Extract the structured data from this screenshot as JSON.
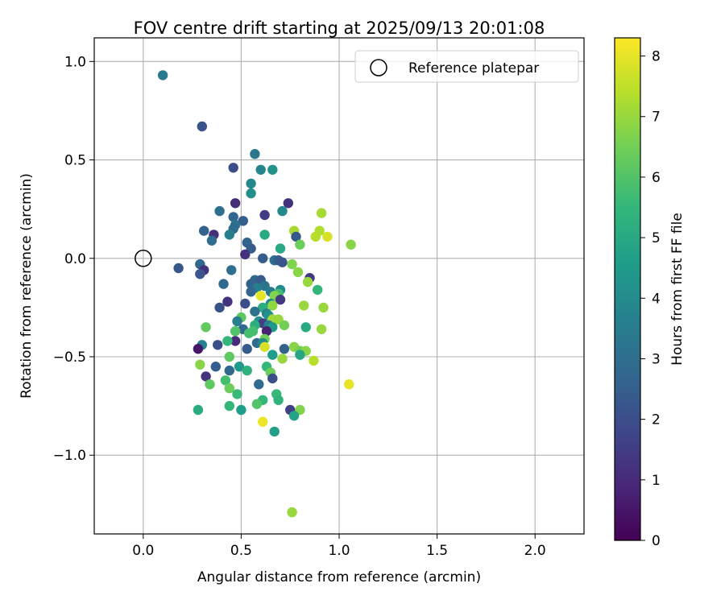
{
  "chart_data": {
    "type": "scatter",
    "title": "FOV centre drift starting at 2025/09/13 20:01:08",
    "xlabel": "Angular distance from reference (arcmin)",
    "ylabel": "Rotation from reference (arcmin)",
    "xlim": [
      -0.25,
      2.25
    ],
    "ylim": [
      -1.4,
      1.12
    ],
    "xticks": [
      0.0,
      0.5,
      1.0,
      1.5,
      2.0
    ],
    "xtick_labels": [
      "0.0",
      "0.5",
      "1.0",
      "1.5",
      "2.0"
    ],
    "yticks": [
      1.0,
      0.5,
      0.0,
      -0.5,
      -1.0
    ],
    "ytick_labels": [
      "1.0",
      "0.5",
      "0.0",
      "−0.5",
      "−1.0"
    ],
    "grid": true,
    "legend": {
      "location": "top-right",
      "entries": [
        "Reference platepar"
      ]
    },
    "reference_point": {
      "x": 0.0,
      "y": 0.0,
      "label": "Reference platepar"
    },
    "colorbar": {
      "label": "Hours from first FF file",
      "min": 0,
      "max": 8.3,
      "ticks": [
        0,
        1,
        2,
        3,
        4,
        5,
        6,
        7,
        8
      ],
      "tick_labels": [
        "0",
        "1",
        "2",
        "3",
        "4",
        "5",
        "6",
        "7",
        "8"
      ],
      "colormap": [
        "#440154",
        "#482878",
        "#3e4989",
        "#31688e",
        "#26828e",
        "#1f9e89",
        "#35b779",
        "#6ece58",
        "#b5de2b",
        "#fde725"
      ]
    },
    "points": [
      [
        0.1,
        0.93,
        3.4
      ],
      [
        0.3,
        0.67,
        2.1
      ],
      [
        0.57,
        0.53,
        3.3
      ],
      [
        0.46,
        0.46,
        2.0
      ],
      [
        0.6,
        0.45,
        3.8
      ],
      [
        0.66,
        0.45,
        4.2
      ],
      [
        0.55,
        0.38,
        3.9
      ],
      [
        0.55,
        0.33,
        4.1
      ],
      [
        0.47,
        0.28,
        1.0
      ],
      [
        0.74,
        0.28,
        1.2
      ],
      [
        0.39,
        0.24,
        3.0
      ],
      [
        0.71,
        0.24,
        3.9
      ],
      [
        0.91,
        0.23,
        7.2
      ],
      [
        0.46,
        0.21,
        2.7
      ],
      [
        0.62,
        0.22,
        1.5
      ],
      [
        0.51,
        0.19,
        2.5
      ],
      [
        0.47,
        0.17,
        3.1
      ],
      [
        0.46,
        0.15,
        2.9
      ],
      [
        0.31,
        0.14,
        2.6
      ],
      [
        0.77,
        0.14,
        7.2
      ],
      [
        0.9,
        0.14,
        7.3
      ],
      [
        0.36,
        0.12,
        1.1
      ],
      [
        0.44,
        0.12,
        3.6
      ],
      [
        0.62,
        0.12,
        5.0
      ],
      [
        0.78,
        0.11,
        2.3
      ],
      [
        0.88,
        0.11,
        7.4
      ],
      [
        0.94,
        0.11,
        7.8
      ],
      [
        0.35,
        0.09,
        2.9
      ],
      [
        0.53,
        0.08,
        2.6
      ],
      [
        0.8,
        0.07,
        6.4
      ],
      [
        0.55,
        0.05,
        2.4
      ],
      [
        0.7,
        0.05,
        5.0
      ],
      [
        1.06,
        0.07,
        6.8
      ],
      [
        0.52,
        0.02,
        1.2
      ],
      [
        0.61,
        0.0,
        2.4
      ],
      [
        0.67,
        -0.01,
        3.0
      ],
      [
        0.69,
        -0.01,
        2.4
      ],
      [
        0.71,
        -0.02,
        2.2
      ],
      [
        0.76,
        -0.03,
        6.7
      ],
      [
        0.29,
        -0.03,
        2.8
      ],
      [
        0.18,
        -0.05,
        2.3
      ],
      [
        0.31,
        -0.06,
        1.2
      ],
      [
        0.45,
        -0.06,
        3.0
      ],
      [
        0.79,
        -0.07,
        6.8
      ],
      [
        0.29,
        -0.08,
        2.2
      ],
      [
        0.85,
        -0.1,
        1.4
      ],
      [
        0.57,
        -0.11,
        2.8
      ],
      [
        0.6,
        -0.11,
        2.4
      ],
      [
        0.84,
        -0.12,
        7.0
      ],
      [
        0.41,
        -0.13,
        2.8
      ],
      [
        0.55,
        -0.13,
        2.6
      ],
      [
        0.62,
        -0.14,
        3.2
      ],
      [
        0.58,
        -0.15,
        3.5
      ],
      [
        0.7,
        -0.16,
        4.0
      ],
      [
        0.89,
        -0.16,
        5.5
      ],
      [
        0.55,
        -0.17,
        2.7
      ],
      [
        0.65,
        -0.17,
        3.4
      ],
      [
        0.69,
        -0.18,
        5.8
      ],
      [
        0.6,
        -0.19,
        8.0
      ],
      [
        0.67,
        -0.19,
        6.7
      ],
      [
        0.7,
        -0.21,
        1.4
      ],
      [
        0.43,
        -0.22,
        1.2
      ],
      [
        0.52,
        -0.23,
        2.0
      ],
      [
        0.65,
        -0.23,
        4.0
      ],
      [
        0.66,
        -0.24,
        6.9
      ],
      [
        0.82,
        -0.24,
        7.0
      ],
      [
        0.92,
        -0.25,
        7.0
      ],
      [
        0.39,
        -0.25,
        2.1
      ],
      [
        0.61,
        -0.25,
        5.2
      ],
      [
        0.57,
        -0.27,
        3.2
      ],
      [
        0.63,
        -0.28,
        3.7
      ],
      [
        0.64,
        -0.29,
        4.2
      ],
      [
        0.5,
        -0.3,
        6.2
      ],
      [
        0.66,
        -0.31,
        7.1
      ],
      [
        0.69,
        -0.31,
        7.0
      ],
      [
        0.48,
        -0.32,
        3.5
      ],
      [
        0.59,
        -0.32,
        4.2
      ],
      [
        0.61,
        -0.33,
        1.6
      ],
      [
        0.57,
        -0.34,
        5.2
      ],
      [
        0.64,
        -0.34,
        3.5
      ],
      [
        0.72,
        -0.34,
        6.5
      ],
      [
        0.83,
        -0.35,
        5.0
      ],
      [
        0.66,
        -0.35,
        4.5
      ],
      [
        0.32,
        -0.35,
        6.3
      ],
      [
        0.51,
        -0.36,
        2.8
      ],
      [
        0.91,
        -0.36,
        7.0
      ],
      [
        0.47,
        -0.37,
        6.0
      ],
      [
        0.56,
        -0.37,
        5.8
      ],
      [
        0.54,
        -0.38,
        5.8
      ],
      [
        0.63,
        -0.37,
        0.8
      ],
      [
        0.62,
        -0.41,
        6.5
      ],
      [
        0.58,
        -0.43,
        2.9
      ],
      [
        0.61,
        -0.43,
        4.0
      ],
      [
        0.47,
        -0.42,
        1.0
      ],
      [
        0.43,
        -0.42,
        5.5
      ],
      [
        0.72,
        -0.46,
        2.6
      ],
      [
        0.3,
        -0.44,
        3.7
      ],
      [
        0.38,
        -0.44,
        2.0
      ],
      [
        0.53,
        -0.46,
        2.4
      ],
      [
        0.62,
        -0.45,
        7.8
      ],
      [
        0.77,
        -0.45,
        6.8
      ],
      [
        0.8,
        -0.47,
        6.5
      ],
      [
        0.83,
        -0.47,
        6.8
      ],
      [
        0.71,
        -0.51,
        7.0
      ],
      [
        0.87,
        -0.52,
        7.4
      ],
      [
        0.66,
        -0.49,
        4.6
      ],
      [
        0.8,
        -0.49,
        4.9
      ],
      [
        0.28,
        -0.46,
        0.5
      ],
      [
        0.44,
        -0.5,
        6.2
      ],
      [
        0.29,
        -0.54,
        6.8
      ],
      [
        0.49,
        -0.55,
        4.4
      ],
      [
        0.63,
        -0.55,
        5.5
      ],
      [
        0.37,
        -0.55,
        2.5
      ],
      [
        0.44,
        -0.57,
        2.8
      ],
      [
        0.53,
        -0.57,
        5.3
      ],
      [
        0.65,
        -0.58,
        6.4
      ],
      [
        0.32,
        -0.6,
        1.2
      ],
      [
        0.66,
        -0.61,
        2.0
      ],
      [
        0.42,
        -0.62,
        5.8
      ],
      [
        0.34,
        -0.64,
        6.2
      ],
      [
        0.59,
        -0.64,
        2.9
      ],
      [
        1.05,
        -0.64,
        8.0
      ],
      [
        0.44,
        -0.66,
        6.4
      ],
      [
        0.48,
        -0.69,
        5.6
      ],
      [
        0.68,
        -0.69,
        5.6
      ],
      [
        0.61,
        -0.72,
        5.5
      ],
      [
        0.69,
        -0.72,
        5.4
      ],
      [
        0.58,
        -0.74,
        6.0
      ],
      [
        0.44,
        -0.75,
        5.5
      ],
      [
        0.28,
        -0.77,
        5.1
      ],
      [
        0.5,
        -0.77,
        4.6
      ],
      [
        0.75,
        -0.77,
        1.6
      ],
      [
        0.8,
        -0.77,
        6.7
      ],
      [
        0.77,
        -0.8,
        4.8
      ],
      [
        0.61,
        -0.83,
        8.1
      ],
      [
        0.67,
        -0.88,
        4.7
      ],
      [
        0.76,
        -1.29,
        7.0
      ]
    ]
  }
}
